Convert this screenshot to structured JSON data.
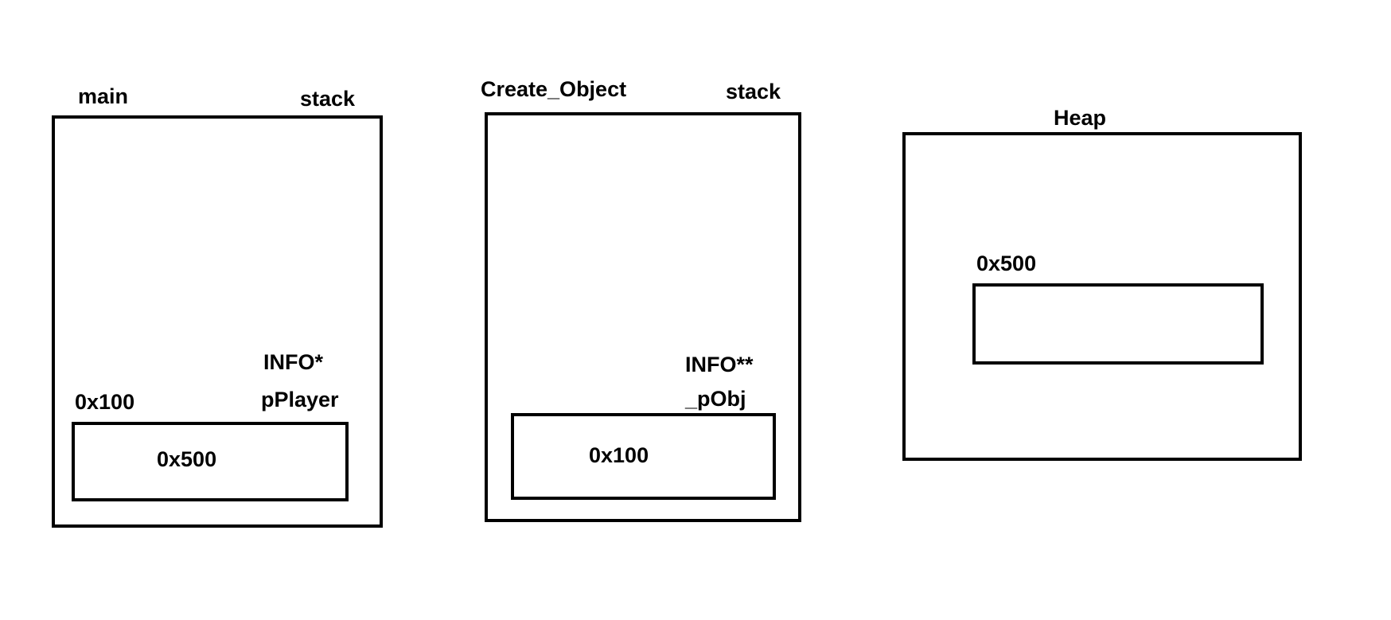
{
  "main_frame": {
    "name": "main",
    "region": "stack",
    "var_type": "INFO*",
    "var_name": "pPlayer",
    "var_address": "0x100",
    "var_value": "0x500"
  },
  "create_object_frame": {
    "name": "Create_Object",
    "region": "stack",
    "var_type": "INFO**",
    "var_name": "_pObj",
    "var_value": "0x100"
  },
  "heap": {
    "name": "Heap",
    "block_address": "0x500"
  }
}
